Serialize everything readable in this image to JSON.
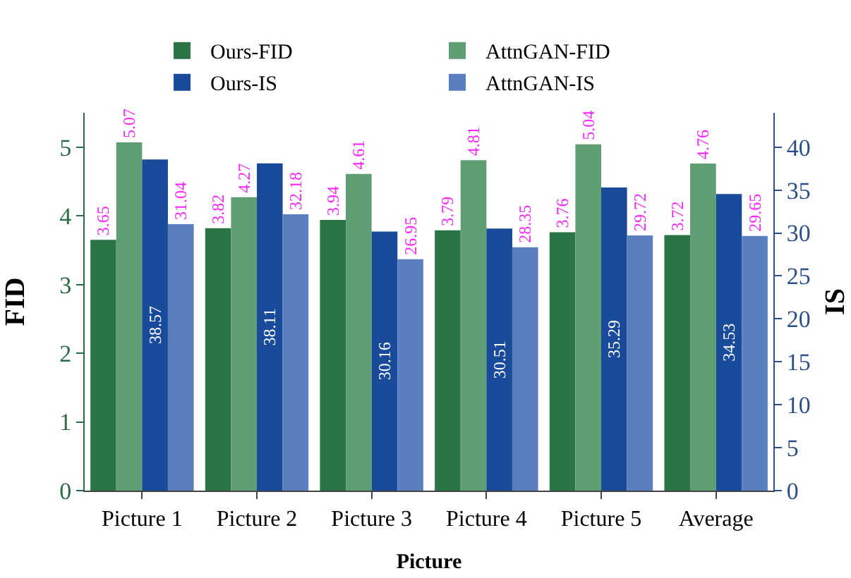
{
  "chart_data": {
    "type": "bar",
    "xlabel": "Picture",
    "ylabel": "FID",
    "y2label": "IS",
    "categories": [
      "Picture 1",
      "Picture 2",
      "Picture 3",
      "Picture 4",
      "Picture 5",
      "Average"
    ],
    "series": [
      {
        "name": "Ours-FID",
        "color": "#2a7446",
        "values": [
          3.65,
          3.82,
          3.94,
          3.79,
          3.76,
          3.72
        ]
      },
      {
        "name": "AttnGAN-FID",
        "color": "#5f9e74",
        "values": [
          5.07,
          4.27,
          4.61,
          4.81,
          5.04,
          4.76
        ]
      },
      {
        "name": "Ours-IS",
        "color": "#1a4a9a",
        "axis": "y2",
        "values": [
          38.57,
          38.11,
          30.16,
          30.51,
          35.29,
          34.53
        ]
      },
      {
        "name": "AttnGAN-IS",
        "color": "#5a7fc0",
        "axis": "y2",
        "values": [
          31.04,
          32.18,
          26.95,
          28.35,
          29.72,
          29.65
        ]
      }
    ],
    "ylim": [
      0,
      5.5
    ],
    "yticks": [
      0,
      1,
      2,
      3,
      4,
      5
    ],
    "y2lim": [
      0,
      44
    ],
    "y2ticks": [
      0,
      5,
      10,
      15,
      20,
      25,
      30,
      35,
      40
    ],
    "data_labels": true,
    "legend": "top",
    "grid": false
  }
}
